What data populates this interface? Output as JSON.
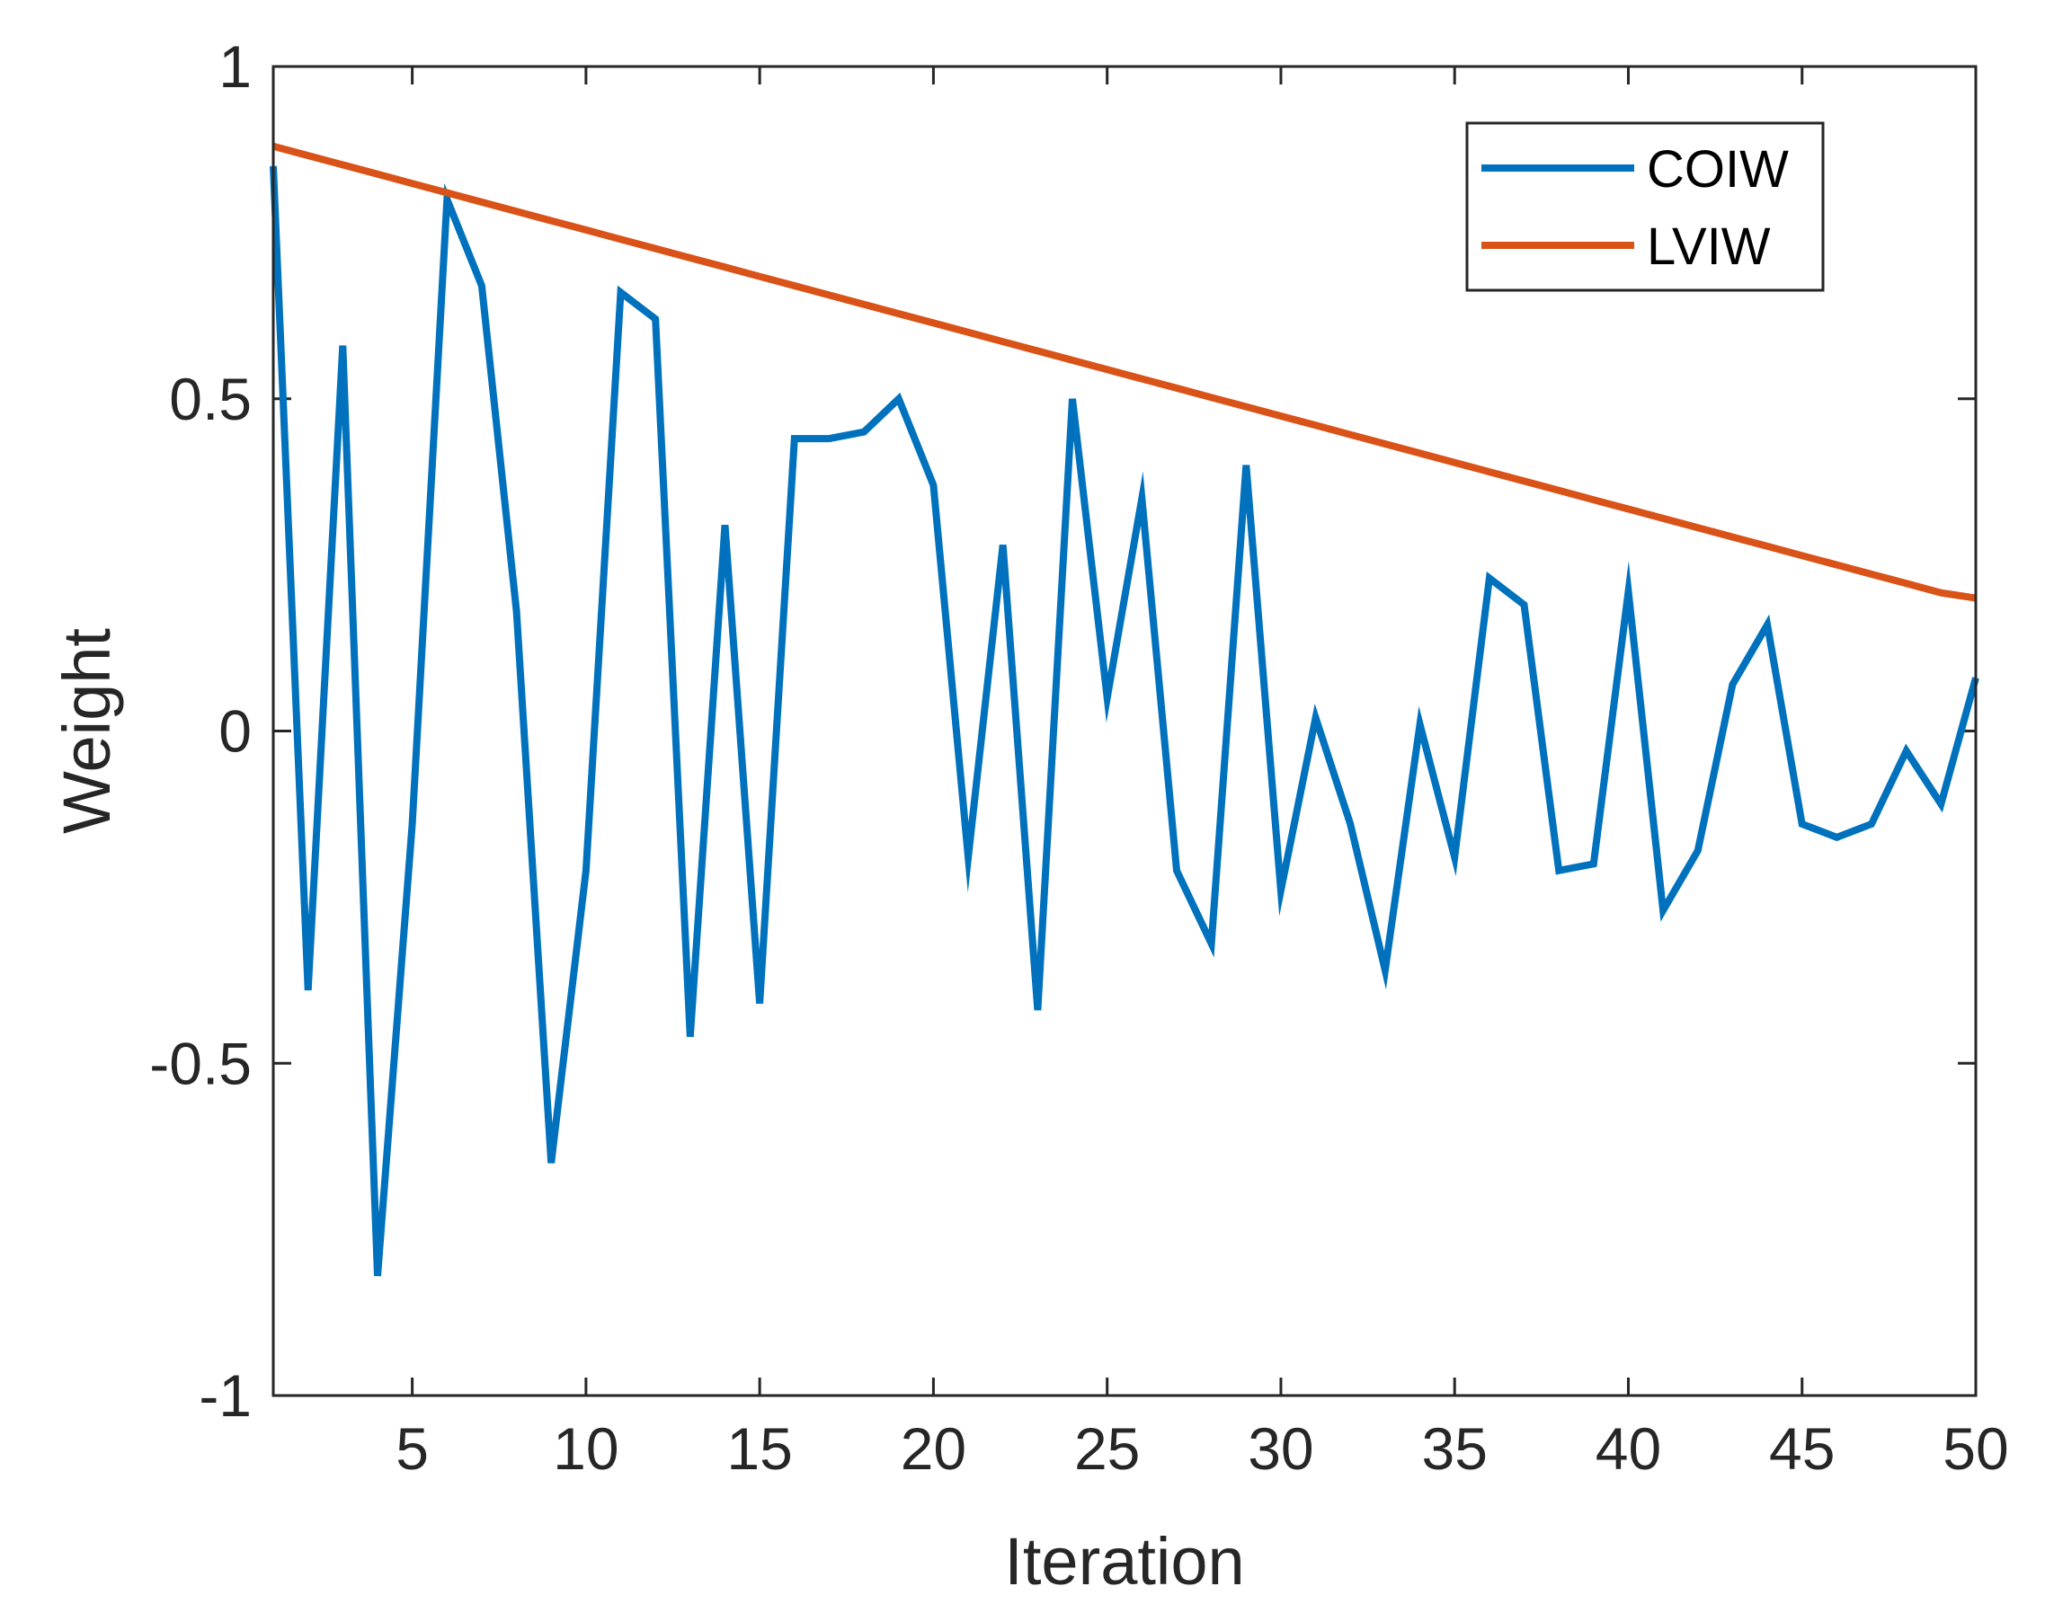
{
  "chart_data": {
    "type": "line",
    "title": "",
    "xlabel": "Iteration",
    "ylabel": "Weight",
    "xlim": [
      1,
      50
    ],
    "ylim": [
      -1,
      1
    ],
    "xticks": [
      5,
      10,
      15,
      20,
      25,
      30,
      35,
      40,
      45,
      50
    ],
    "xtick_labels": [
      "5",
      "10",
      "15",
      "20",
      "25",
      "30",
      "35",
      "40",
      "45",
      "50"
    ],
    "yticks": [
      -1,
      -0.5,
      0,
      0.5,
      1
    ],
    "ytick_labels": [
      "-1",
      "-0.5",
      "0",
      "0.5",
      "1"
    ],
    "grid": false,
    "legend_position": "top-right",
    "x": [
      1,
      2,
      3,
      4,
      5,
      6,
      7,
      8,
      9,
      10,
      11,
      12,
      13,
      14,
      15,
      16,
      17,
      18,
      19,
      20,
      21,
      22,
      23,
      24,
      25,
      26,
      27,
      28,
      29,
      30,
      31,
      32,
      33,
      34,
      35,
      36,
      37,
      38,
      39,
      40,
      41,
      42,
      43,
      44,
      45,
      46,
      47,
      48,
      49,
      50
    ],
    "series": [
      {
        "name": "COIW",
        "color": "#0072BD",
        "values": [
          0.85,
          -0.39,
          0.58,
          -0.82,
          -0.14,
          0.8,
          0.67,
          0.18,
          -0.65,
          -0.21,
          0.66,
          0.62,
          -0.46,
          0.31,
          -0.41,
          0.44,
          0.44,
          0.45,
          0.5,
          0.37,
          -0.19,
          0.28,
          -0.42,
          0.5,
          0.05,
          0.35,
          -0.21,
          -0.32,
          0.4,
          -0.24,
          0.02,
          -0.14,
          -0.36,
          0.01,
          -0.19,
          0.23,
          0.19,
          -0.21,
          -0.2,
          0.21,
          -0.27,
          -0.18,
          0.07,
          0.16,
          -0.14,
          -0.16,
          -0.14,
          -0.03,
          -0.11,
          0.08
        ]
      },
      {
        "name": "LVIW",
        "color": "#D95319",
        "values": [
          0.88,
          0.866,
          0.852,
          0.838,
          0.824,
          0.81,
          0.796,
          0.782,
          0.768,
          0.754,
          0.74,
          0.726,
          0.712,
          0.698,
          0.684,
          0.67,
          0.656,
          0.642,
          0.628,
          0.614,
          0.6,
          0.586,
          0.572,
          0.558,
          0.544,
          0.53,
          0.516,
          0.502,
          0.488,
          0.474,
          0.46,
          0.446,
          0.432,
          0.418,
          0.404,
          0.39,
          0.376,
          0.362,
          0.348,
          0.334,
          0.32,
          0.306,
          0.292,
          0.278,
          0.264,
          0.25,
          0.236,
          0.222,
          0.208,
          0.2
        ]
      }
    ]
  }
}
